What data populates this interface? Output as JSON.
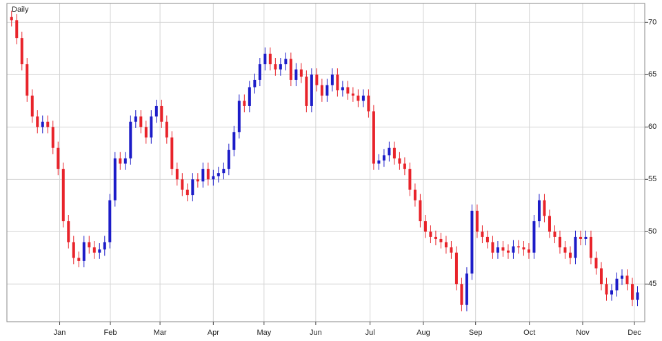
{
  "chart_data": {
    "type": "candlestick",
    "label": "Daily",
    "label_color": "#1c1cc8",
    "up_color": "#1c1cc8",
    "down_color": "#e8232a",
    "grid": true,
    "y_axis_side": "right",
    "ylim": [
      41.4,
      71.8
    ],
    "yticks": [
      45,
      50,
      55,
      60,
      65,
      70
    ],
    "xlim": [
      -0.9,
      122.4
    ],
    "xticks": [
      {
        "value": 9.3,
        "label": "Jan"
      },
      {
        "value": 19.1,
        "label": "Feb"
      },
      {
        "value": 28.7,
        "label": "Mar"
      },
      {
        "value": 39,
        "label": "Apr"
      },
      {
        "value": 48.8,
        "label": "May"
      },
      {
        "value": 58.8,
        "label": "Jun"
      },
      {
        "value": 69.3,
        "label": "Jul"
      },
      {
        "value": 79.6,
        "label": "Aug"
      },
      {
        "value": 89.7,
        "label": "Sep"
      },
      {
        "value": 100.1,
        "label": "Oct"
      },
      {
        "value": 110.4,
        "label": "Nov"
      },
      {
        "value": 120.4,
        "label": "Dec"
      }
    ],
    "open": [
      70.5,
      70.2,
      68.5,
      66,
      63,
      61,
      60,
      60.5,
      60,
      58,
      56,
      51,
      49,
      47.5,
      47.2,
      49,
      48.5,
      48,
      48.3,
      49,
      53,
      57,
      56.5,
      57,
      60.5,
      61,
      60,
      59,
      61,
      62,
      60.5,
      59,
      56,
      55,
      54,
      53.5,
      55,
      54.8,
      56,
      55,
      55.3,
      55.6,
      56,
      57.8,
      59.5,
      62.5,
      62,
      63.8,
      64.5,
      66,
      67,
      66,
      65.5,
      66,
      66.5,
      64.5,
      65.5,
      64.8,
      62,
      65,
      64,
      63,
      64,
      65,
      63.5,
      63.8,
      63.2,
      63,
      62.5,
      63,
      61.5,
      56.5,
      56.8,
      57.3,
      58,
      57,
      56.5,
      56,
      54,
      53,
      51,
      50,
      49.5,
      49.3,
      49,
      48.5,
      48,
      45,
      43,
      46,
      52,
      50,
      49.5,
      49,
      48,
      48.5,
      48.2,
      48,
      48.6,
      48.5,
      48.3,
      48,
      51,
      53,
      51.5,
      50,
      49.5,
      48.5,
      48,
      47.5,
      49.5,
      49.3,
      49.5,
      47.5,
      46.5,
      45,
      44,
      44.4,
      45.5,
      45.8,
      45,
      43.5
    ],
    "high": [
      71.1,
      70.8,
      69.1,
      66.6,
      63.6,
      61.6,
      61.1,
      61.1,
      60.6,
      58.6,
      56.6,
      51.6,
      49.6,
      48.1,
      49.6,
      49.6,
      49.1,
      48.9,
      49.6,
      53.6,
      57.6,
      57.6,
      57.6,
      61.1,
      61.6,
      61.6,
      60.6,
      61.6,
      62.6,
      62.6,
      61.1,
      59.6,
      56.6,
      55.6,
      54.6,
      55.6,
      55.6,
      56.6,
      56.6,
      55.9,
      56.2,
      56.6,
      58.4,
      60.1,
      63.1,
      63.1,
      64.4,
      65.1,
      66.6,
      67.6,
      67.6,
      66.6,
      66.6,
      67.1,
      67.1,
      66.1,
      66.1,
      65.4,
      65.6,
      65.6,
      64.6,
      64.6,
      65.6,
      65.6,
      64.4,
      64.4,
      63.8,
      63.6,
      63.6,
      63.6,
      62.1,
      57.4,
      57.9,
      58.6,
      58.6,
      57.6,
      57.1,
      56.6,
      54.6,
      53.6,
      51.6,
      50.6,
      50.1,
      49.9,
      49.6,
      49.1,
      48.6,
      45.6,
      46.6,
      52.6,
      52.6,
      50.6,
      50.1,
      49.6,
      49.1,
      49.1,
      48.8,
      49.2,
      49.2,
      49.1,
      48.9,
      51.6,
      53.6,
      53.6,
      52.1,
      50.6,
      50.1,
      49.1,
      48.6,
      50.1,
      50.1,
      50.1,
      50.1,
      48.1,
      47.1,
      45.6,
      45,
      46.1,
      46.4,
      46.4,
      45.6,
      44.8
    ],
    "low": [
      69.6,
      67.9,
      65.4,
      62.4,
      60.4,
      59.4,
      59.4,
      59.4,
      57.4,
      55.4,
      50.4,
      48.4,
      46.9,
      46.6,
      46.6,
      47.9,
      47.4,
      47.4,
      47.7,
      48.4,
      52.4,
      55.9,
      55.9,
      56.4,
      59.9,
      59.4,
      58.4,
      58.4,
      60.4,
      59.9,
      58.4,
      55.4,
      54.4,
      53.4,
      52.9,
      52.9,
      54.2,
      54.2,
      54.4,
      54.4,
      54.7,
      55,
      55.4,
      57.2,
      58.9,
      61.4,
      61.4,
      63.2,
      63.9,
      65.4,
      65.4,
      64.9,
      64.9,
      65.4,
      63.9,
      63.9,
      64.2,
      61.4,
      61.4,
      63.4,
      62.4,
      62.4,
      63.4,
      62.9,
      62.9,
      62.6,
      62.4,
      61.9,
      61.9,
      60.9,
      55.9,
      55.9,
      56.2,
      56.7,
      56.4,
      55.9,
      55.4,
      53.4,
      52.4,
      50.4,
      49.4,
      48.9,
      48.7,
      48.4,
      47.9,
      47.4,
      44.4,
      42.4,
      42.4,
      45.4,
      49.4,
      48.9,
      48.4,
      47.4,
      47.4,
      47.6,
      47.4,
      47.4,
      47.9,
      47.7,
      47.4,
      47.4,
      50.4,
      50.9,
      49.4,
      48.9,
      47.9,
      47.4,
      46.9,
      46.9,
      48.7,
      48.7,
      46.9,
      45.9,
      44.4,
      43.4,
      43.4,
      43.8,
      44.9,
      44.4,
      42.9,
      42.9
    ],
    "close": [
      70.2,
      68.5,
      66,
      63,
      61,
      60,
      60.5,
      60,
      58,
      56,
      51,
      49,
      47.5,
      47.2,
      49,
      48.5,
      48,
      48.3,
      49,
      53,
      57,
      56.5,
      57,
      60.5,
      61,
      60,
      59,
      61,
      62,
      60.5,
      59,
      56,
      55,
      54,
      53.5,
      55,
      54.8,
      56,
      55,
      55.3,
      55.6,
      56,
      57.8,
      59.5,
      62.5,
      62,
      63.8,
      64.5,
      66,
      67,
      66,
      65.5,
      66,
      66.5,
      64.5,
      65.5,
      64.8,
      62,
      65,
      64,
      63,
      64,
      65,
      63.5,
      63.8,
      63.2,
      63,
      62.5,
      63,
      61.5,
      56.5,
      56.8,
      57.3,
      58,
      57,
      56.5,
      56,
      54,
      53,
      51,
      50,
      49.5,
      49.3,
      49,
      48.5,
      48,
      45,
      43,
      46,
      52,
      50,
      49.5,
      49,
      48,
      48.5,
      48.2,
      48,
      48.6,
      48.5,
      48.3,
      48,
      51,
      53,
      51.5,
      50,
      49.5,
      48.5,
      48,
      47.5,
      49.5,
      49.3,
      49.5,
      47.5,
      46.5,
      45,
      44,
      44.4,
      45.5,
      45.8,
      45,
      43.5,
      44.2
    ]
  }
}
